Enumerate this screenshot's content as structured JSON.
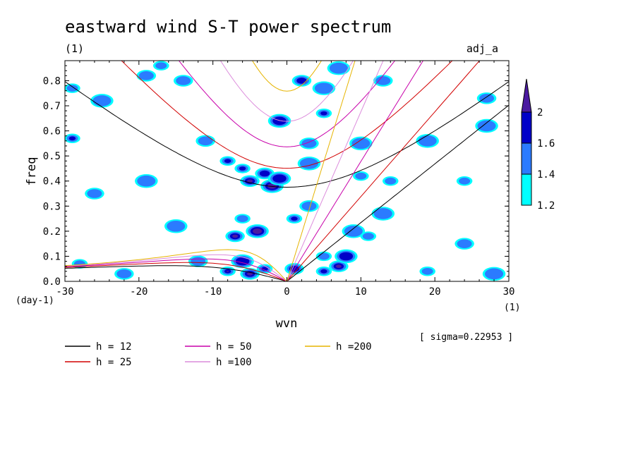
{
  "chart_data": {
    "type": "heatmap",
    "title": "eastward wind S-T power spectrum",
    "subtitle_left": "(1)",
    "subtitle_right": "adj_a",
    "xlabel": "wvn",
    "ylabel": "freq",
    "x_unit": "(1)",
    "y_unit": "(day-1)",
    "sigma_note": "[ sigma=0.22953 ]",
    "xlim": [
      -30,
      30
    ],
    "ylim": [
      0,
      0.88
    ],
    "x_ticks": [
      -30,
      -20,
      -10,
      0,
      10,
      20,
      30
    ],
    "x_tick_labels": [
      "-30",
      "-20",
      "-10",
      "0",
      "10",
      "20",
      "30"
    ],
    "y_ticks": [
      0,
      0.1,
      0.2,
      0.3,
      0.4,
      0.5,
      0.6,
      0.7,
      0.8
    ],
    "y_tick_labels": [
      "0.0",
      "0.1",
      "0.2",
      "0.3",
      "0.4",
      "0.5",
      "0.6",
      "0.7",
      "0.8"
    ],
    "colorbar": {
      "levels": [
        1.2,
        1.4,
        1.6,
        2
      ],
      "labels": [
        "1.2",
        "1.4",
        "1.6",
        "2"
      ],
      "colors": [
        "#00ffff",
        "#2b7bff",
        "#0000c8",
        "#4b1aa0"
      ]
    },
    "series": [
      {
        "name": "h = 12",
        "h": 12,
        "color": "#000000"
      },
      {
        "name": "h = 25",
        "h": 25,
        "color": "#d20000"
      },
      {
        "name": "h = 50",
        "h": 50,
        "color": "#c800aa"
      },
      {
        "name": "h =100",
        "h": 100,
        "color": "#dc8cdc"
      },
      {
        "name": "h =200",
        "h": 200,
        "color": "#e6b400"
      }
    ],
    "contour_blobs": [
      {
        "x": -8,
        "y": 0.04,
        "level": 3
      },
      {
        "x": -5,
        "y": 0.03,
        "level": 3
      },
      {
        "x": -6,
        "y": 0.08,
        "level": 2
      },
      {
        "x": -3,
        "y": 0.05,
        "level": 2
      },
      {
        "x": -7,
        "y": 0.18,
        "level": 3
      },
      {
        "x": -4,
        "y": 0.2,
        "level": 3
      },
      {
        "x": -6,
        "y": 0.25,
        "level": 1
      },
      {
        "x": -5,
        "y": 0.4,
        "level": 3
      },
      {
        "x": -2,
        "y": 0.38,
        "level": 3
      },
      {
        "x": -6,
        "y": 0.45,
        "level": 2
      },
      {
        "x": -3,
        "y": 0.43,
        "level": 2
      },
      {
        "x": -1,
        "y": 0.41,
        "level": 2
      },
      {
        "x": 1,
        "y": 0.25,
        "level": 2
      },
      {
        "x": 3,
        "y": 0.3,
        "level": 1
      },
      {
        "x": 3,
        "y": 0.47,
        "level": 1
      },
      {
        "x": 5,
        "y": 0.1,
        "level": 1
      },
      {
        "x": 7,
        "y": 0.06,
        "level": 3
      },
      {
        "x": 8,
        "y": 0.1,
        "level": 2
      },
      {
        "x": 5,
        "y": 0.04,
        "level": 2
      },
      {
        "x": 1,
        "y": 0.05,
        "level": 2
      },
      {
        "x": 9,
        "y": 0.2,
        "level": 1
      },
      {
        "x": 11,
        "y": 0.18,
        "level": 1
      },
      {
        "x": 2,
        "y": 0.8,
        "level": 2
      },
      {
        "x": 5,
        "y": 0.77,
        "level": 1
      },
      {
        "x": 5,
        "y": 0.67,
        "level": 2
      },
      {
        "x": 3,
        "y": 0.55,
        "level": 1
      },
      {
        "x": -1,
        "y": 0.64,
        "level": 2
      },
      {
        "x": -17,
        "y": 0.86,
        "level": 1
      },
      {
        "x": -19,
        "y": 0.82,
        "level": 1
      },
      {
        "x": -25,
        "y": 0.72,
        "level": 1
      },
      {
        "x": -29,
        "y": 0.57,
        "level": 2
      },
      {
        "x": -26,
        "y": 0.35,
        "level": 1
      },
      {
        "x": -19,
        "y": 0.4,
        "level": 1
      },
      {
        "x": -28,
        "y": 0.07,
        "level": 1
      },
      {
        "x": -22,
        "y": 0.03,
        "level": 1
      },
      {
        "x": -15,
        "y": 0.22,
        "level": 1
      },
      {
        "x": 14,
        "y": 0.4,
        "level": 1
      },
      {
        "x": 13,
        "y": 0.8,
        "level": 1
      },
      {
        "x": 19,
        "y": 0.56,
        "level": 1
      },
      {
        "x": 24,
        "y": 0.4,
        "level": 1
      },
      {
        "x": 27,
        "y": 0.73,
        "level": 1
      },
      {
        "x": 27,
        "y": 0.62,
        "level": 1
      },
      {
        "x": 19,
        "y": 0.04,
        "level": 1
      },
      {
        "x": 24,
        "y": 0.15,
        "level": 1
      },
      {
        "x": 28,
        "y": 0.03,
        "level": 1
      },
      {
        "x": 10,
        "y": 0.42,
        "level": 1
      },
      {
        "x": -14,
        "y": 0.8,
        "level": 1
      },
      {
        "x": 7,
        "y": 0.85,
        "level": 1
      },
      {
        "x": -8,
        "y": 0.48,
        "level": 2
      },
      {
        "x": -11,
        "y": 0.56,
        "level": 1
      },
      {
        "x": 10,
        "y": 0.55,
        "level": 1
      },
      {
        "x": -29,
        "y": 0.77,
        "level": 1
      },
      {
        "x": -12,
        "y": 0.08,
        "level": 1
      },
      {
        "x": 13,
        "y": 0.27,
        "level": 1
      }
    ]
  }
}
